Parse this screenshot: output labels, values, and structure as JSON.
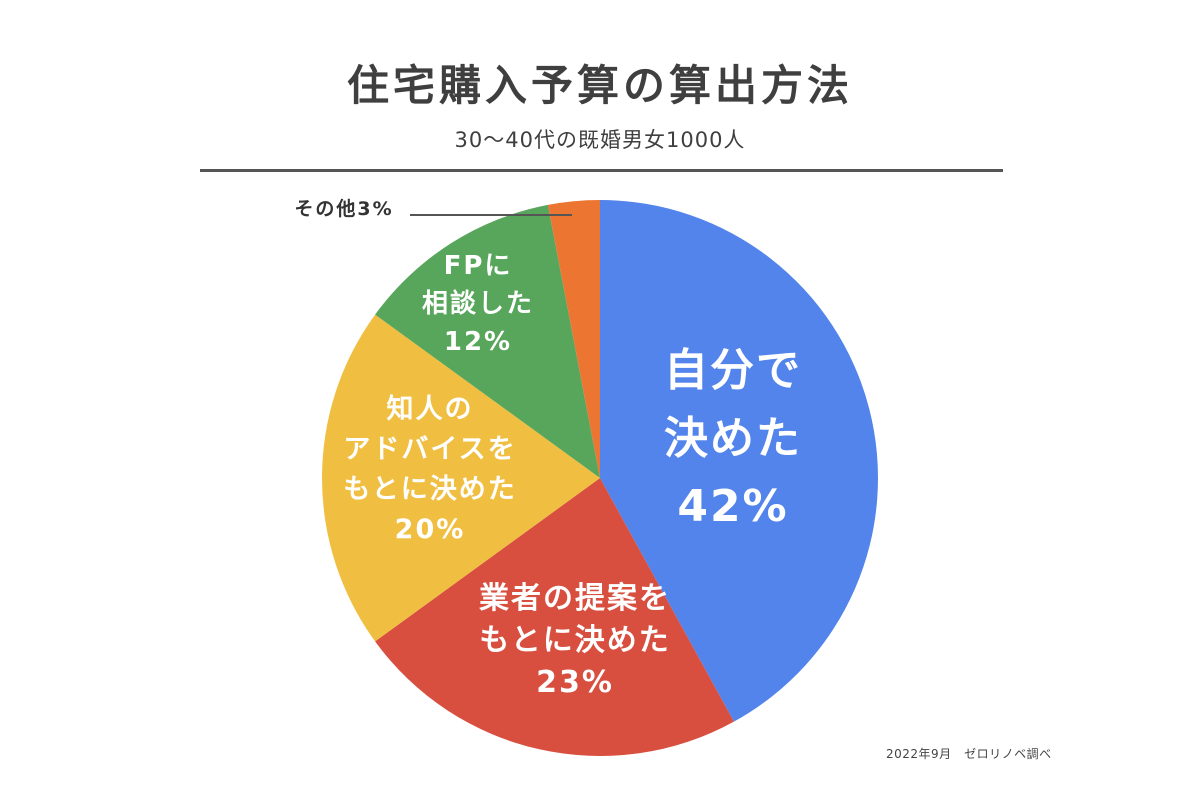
{
  "chart_data": {
    "type": "pie",
    "title": "住宅購入予算の算出方法",
    "subtitle": "30～40代の既婚男女1000人",
    "source": "2022年9月　ゼロリノベ調べ",
    "start_angle_deg": 0,
    "direction": "clockwise",
    "slices": [
      {
        "label_lines": [
          "自分で",
          "決めた",
          "42%"
        ],
        "value": 42,
        "color": "#5284eb",
        "label_color": "#ffffff"
      },
      {
        "label_lines": [
          "業者の提案を",
          "もとに決めた",
          "23%"
        ],
        "value": 23,
        "color": "#d84f40",
        "label_color": "#ffffff"
      },
      {
        "label_lines": [
          "知人の",
          "アドバイスを",
          "もとに決めた",
          "20%"
        ],
        "value": 20,
        "color": "#f0bf41",
        "label_color": "#ffffff"
      },
      {
        "label_lines": [
          "FPに",
          "相談した",
          "12%"
        ],
        "value": 12,
        "color": "#58a55c",
        "label_color": "#ffffff"
      },
      {
        "label_lines": [
          "その他3%"
        ],
        "value": 3,
        "color": "#ec7631",
        "label_color": "#333333",
        "callout": true
      }
    ]
  }
}
